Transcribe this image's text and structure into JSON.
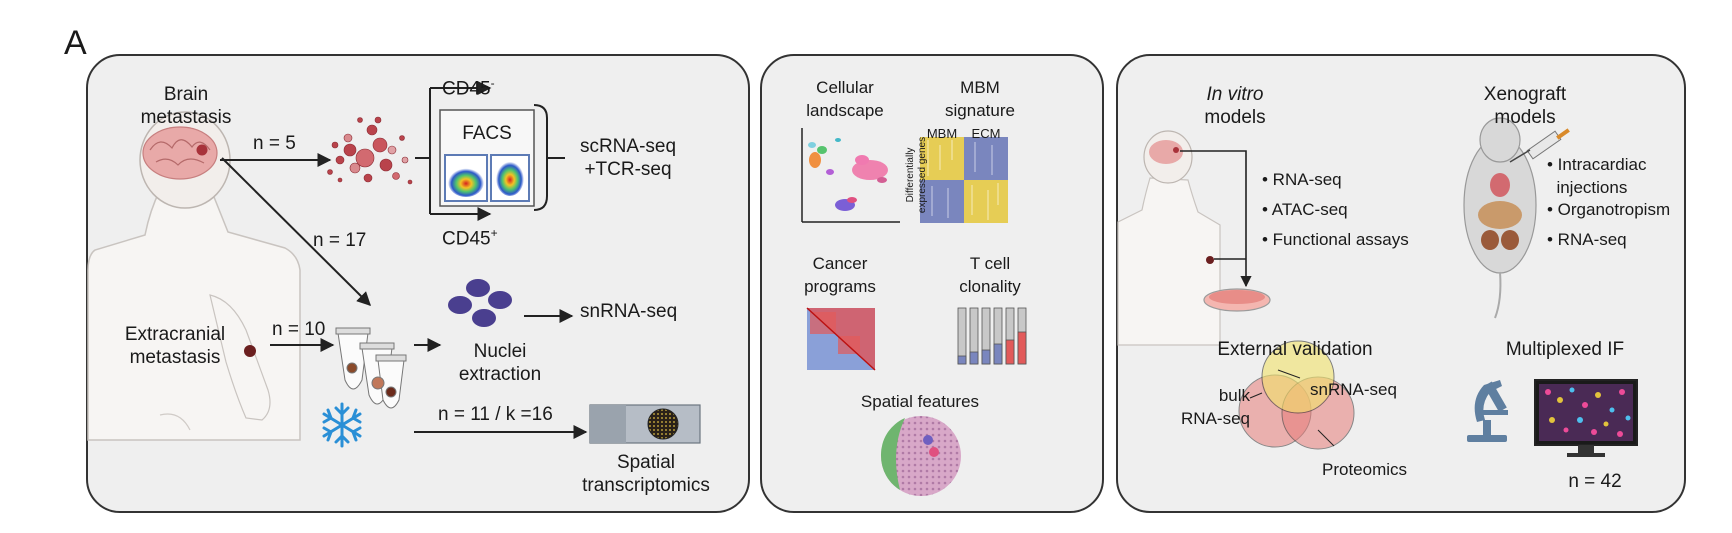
{
  "figure": {
    "panel_letter": "A",
    "sample_collection": {
      "brain_label": "Brain\nmetastasis",
      "extracranial_label": "Extracranial\nmetastasis",
      "n_brain_sc": "n = 5",
      "n_brain_sn": "n = 17",
      "n_extra": "n = 10",
      "n_spatial": "n = 11 / k =16",
      "cd45_neg": "CD45",
      "cd45_neg_sup": "-",
      "cd45_pos": "CD45",
      "cd45_pos_sup": "+",
      "facs": "FACS",
      "scrna": "scRNA-seq\n+TCR-seq",
      "nuclei": "Nuclei\nextraction",
      "snrna": "snRNA-seq",
      "spatial": "Spatial\ntranscriptomics"
    },
    "analysis": {
      "cellular_landscape": "Cellular\nlandscape",
      "mbm_signature": "MBM\nsignature",
      "heatmap_col1": "MBM",
      "heatmap_col2": "ECM",
      "heatmap_ylabel": "Differentially\nexpressed genes",
      "cancer_programs": "Cancer\nprograms",
      "t_cell_clonality": "T cell\nclonality",
      "spatial_features": "Spatial features"
    },
    "validation": {
      "in_vitro_em": "In vitro",
      "in_vitro_rest": "models",
      "xenograft": "Xenograft\nmodels",
      "in_vitro_items": [
        "• RNA-seq",
        "• ATAC-seq",
        "• Functional assays"
      ],
      "xeno_items": [
        "• Intracardiac\n  injections",
        "• Organotropism",
        "• RNA-seq"
      ],
      "external_validation": "External validation",
      "venn_snrna": "snRNA-seq",
      "venn_bulk": "bulk\nRNA-seq",
      "venn_proteomics": "Proteomics",
      "multiplexed_if": "Multiplexed IF",
      "n_if": "n = 42"
    }
  },
  "colors": {
    "panel_bg": "#efefef",
    "border": "#333333",
    "tumor_red": "#a8323a",
    "nuclei_purple": "#4a3f8f",
    "snow_blue": "#2a8fd6",
    "heat_yellow": "#e6cd55",
    "heat_blue": "#7a86be",
    "venn_yellow": "#f2e36b",
    "venn_red": "#e77d7a",
    "microscope_blue": "#5f7fa0"
  }
}
